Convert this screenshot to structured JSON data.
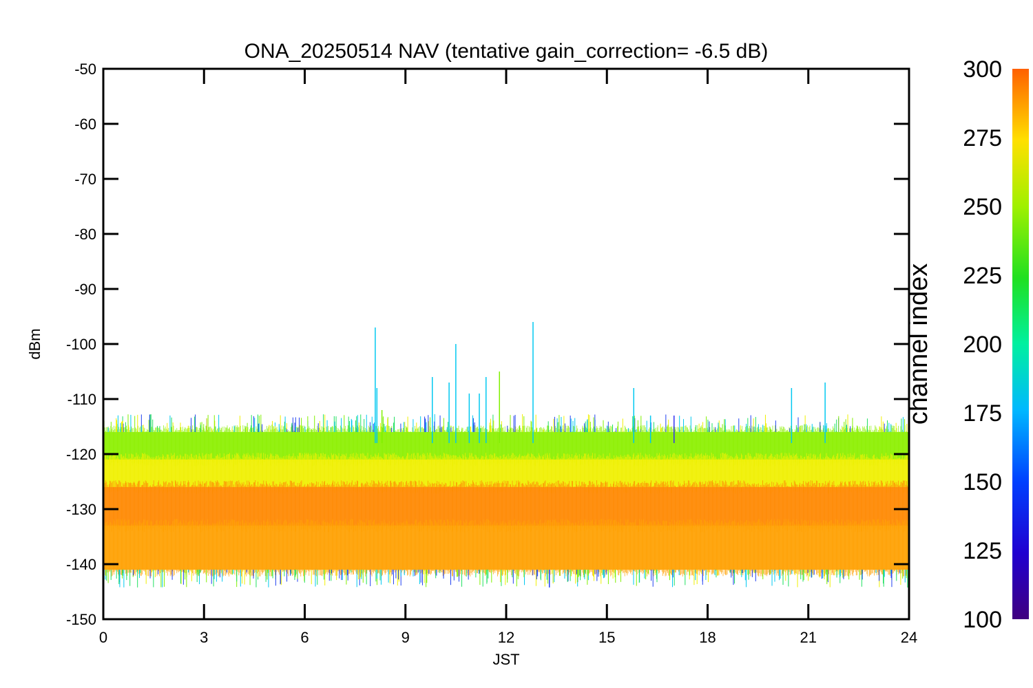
{
  "chart_data": {
    "type": "line",
    "title": "ONA_20250514 NAV (tentative gain_correction= -6.5 dB)",
    "xlabel": "JST",
    "ylabel": "dBm",
    "xlim": [
      0,
      24
    ],
    "ylim": [
      -150,
      -50
    ],
    "x_ticks": [
      "0",
      "3",
      "6",
      "9",
      "12",
      "15",
      "18",
      "21",
      "24"
    ],
    "y_ticks": [
      "-50",
      "-60",
      "-70",
      "-80",
      "-90",
      "-100",
      "-110",
      "-120",
      "-130",
      "-140",
      "-150"
    ],
    "grid": false,
    "colorbar": {
      "title": "channel index",
      "range": [
        100,
        300
      ],
      "ticks": [
        "100",
        "125",
        "150",
        "175",
        "200",
        "225",
        "250",
        "275",
        "300"
      ],
      "colormap": "rainbow"
    },
    "bands": [
      {
        "name": "channel ~250 (green)",
        "color": "#8cf000",
        "range_dBm": [
          -121,
          -116
        ]
      },
      {
        "name": "channel ~270 (yellow)",
        "color": "#f0f000",
        "range_dBm": [
          -126,
          -121
        ]
      },
      {
        "name": "channel ~290 (orange, upper)",
        "color": "#ff8800",
        "range_dBm": [
          -133,
          -126
        ]
      },
      {
        "name": "channel ~285 (orange, lower)",
        "color": "#ffa000",
        "range_dBm": [
          -141,
          -133
        ]
      }
    ],
    "spikes": [
      {
        "x": 8.1,
        "y": -97,
        "color": "#00c8f0"
      },
      {
        "x": 8.15,
        "y": -108,
        "color": "#00c8f0"
      },
      {
        "x": 8.3,
        "y": -112,
        "color": "#80f000"
      },
      {
        "x": 9.8,
        "y": -106,
        "color": "#00c8f0"
      },
      {
        "x": 10.3,
        "y": -107,
        "color": "#00c8f0"
      },
      {
        "x": 10.5,
        "y": -100,
        "color": "#00c8f0"
      },
      {
        "x": 10.9,
        "y": -109,
        "color": "#00c8f0"
      },
      {
        "x": 11.2,
        "y": -109,
        "color": "#00c8f0"
      },
      {
        "x": 11.4,
        "y": -106,
        "color": "#00c8f0"
      },
      {
        "x": 11.8,
        "y": -105,
        "color": "#80f000"
      },
      {
        "x": 12.8,
        "y": -96,
        "color": "#00c8f0"
      },
      {
        "x": 15.8,
        "y": -108,
        "color": "#00c8f0"
      },
      {
        "x": 16.3,
        "y": -113,
        "color": "#00c8f0"
      },
      {
        "x": 17.0,
        "y": -113,
        "color": "#3030f0"
      },
      {
        "x": 20.5,
        "y": -108,
        "color": "#00c8f0"
      },
      {
        "x": 21.5,
        "y": -107,
        "color": "#00c8f0"
      }
    ]
  }
}
